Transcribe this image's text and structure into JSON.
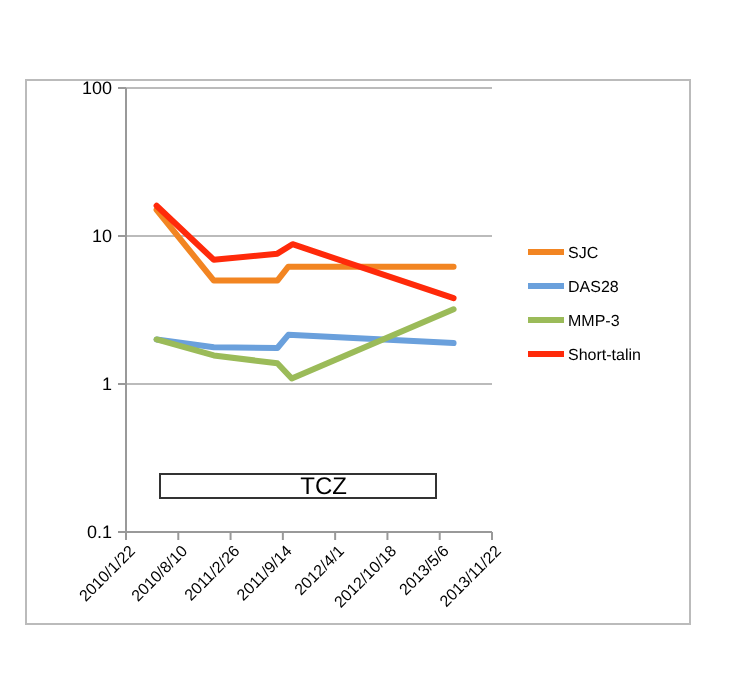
{
  "chart_data": {
    "type": "line",
    "log": "y",
    "grid": "y",
    "legend": "right",
    "line_style": "solid",
    "xlim": [
      "2010-01-22",
      "2013-11-22"
    ],
    "xticks": [
      {
        "value": "2010-01-22",
        "label": "2010/1/22"
      },
      {
        "value": "2010-08-10",
        "label": "2010/8/10"
      },
      {
        "value": "2011-02-26",
        "label": "2011/2/26"
      },
      {
        "value": "2011-09-14",
        "label": "2011/9/14"
      },
      {
        "value": "2012-04-01",
        "label": "2012/4/1"
      },
      {
        "value": "2012-10-18",
        "label": "2012/10/18"
      },
      {
        "value": "2013-05-06",
        "label": "2013/5/6"
      },
      {
        "value": "2013-11-22",
        "label": "2013/11/22"
      }
    ],
    "ylim": [
      0.1,
      100
    ],
    "yticks": [
      0.1,
      1,
      10,
      100
    ],
    "annotations": [
      "TCZ"
    ],
    "series": [
      {
        "name": "SJC",
        "color": "#f28522",
        "x": [
          "2010-05-19",
          "2010-12-24",
          "2011-08-24",
          "2011-10-05",
          "2013-06-28"
        ],
        "values": [
          15,
          5,
          5,
          6.2,
          6.2
        ]
      },
      {
        "name": "DAS28",
        "color": "#6aa0dc",
        "x": [
          "2010-05-19",
          "2010-12-24",
          "2011-08-24",
          "2011-10-05",
          "2013-06-28"
        ],
        "values": [
          2,
          1.77,
          1.75,
          2.15,
          1.89
        ]
      },
      {
        "name": "MMP-3",
        "color": "#9bbb59",
        "x": [
          "2010-05-19",
          "2010-12-24",
          "2011-08-24",
          "2011-10-18",
          "2013-06-28"
        ],
        "values": [
          2,
          1.56,
          1.38,
          1.09,
          3.2
        ]
      },
      {
        "name": "Short-talin",
        "color": "#ff2a0a",
        "x": [
          "2010-05-19",
          "2010-12-24",
          "2011-08-24",
          "2011-10-21",
          "2013-06-28"
        ],
        "values": [
          16,
          6.9,
          7.6,
          8.8,
          3.8
        ]
      }
    ]
  }
}
